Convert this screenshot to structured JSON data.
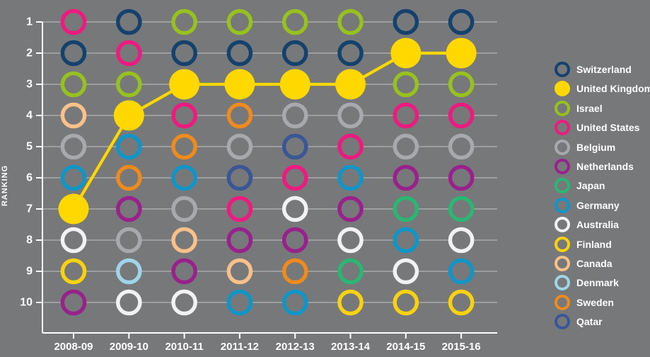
{
  "chart_data": {
    "type": "bump-line",
    "ylabel": "RANKING",
    "x_categories": [
      "2008-09",
      "2009-10",
      "2010-11",
      "2011-12",
      "2012-13",
      "2013-14",
      "2014-15",
      "2015-16"
    ],
    "y_ticks": [
      "1",
      "2",
      "3",
      "4",
      "5",
      "6",
      "7",
      "8",
      "9",
      "10"
    ],
    "ylim": [
      1,
      10
    ],
    "grid": true,
    "legend_position": "right",
    "highlight_series": "United Kingdom",
    "colors": {
      "background": "#77787a",
      "grid": "#a9aaab",
      "axis": "#ffffff",
      "text": "#ffffff",
      "highlight": "#ffd800"
    },
    "series": [
      {
        "name": "Switzerland",
        "color": "#14426d",
        "filled": false,
        "ranks": [
          2,
          1,
          2,
          2,
          2,
          2,
          1,
          1
        ]
      },
      {
        "name": "United Kingdom",
        "color": "#ffd800",
        "filled": true,
        "ranks": [
          7,
          4,
          3,
          3,
          3,
          3,
          2,
          2
        ]
      },
      {
        "name": "Israel",
        "color": "#97c11f",
        "filled": false,
        "ranks": [
          3,
          3,
          1,
          1,
          1,
          1,
          3,
          3
        ]
      },
      {
        "name": "United States",
        "color": "#ed1a7f",
        "filled": false,
        "ranks": [
          1,
          2,
          4,
          7,
          6,
          5,
          4,
          4
        ]
      },
      {
        "name": "Belgium",
        "color": "#a7a9ac",
        "filled": false,
        "ranks": [
          5,
          8,
          7,
          5,
          4,
          4,
          5,
          5
        ]
      },
      {
        "name": "Netherlands",
        "color": "#98218c",
        "filled": false,
        "ranks": [
          10,
          7,
          9,
          8,
          8,
          7,
          6,
          6
        ]
      },
      {
        "name": "Japan",
        "color": "#2bb673",
        "filled": false,
        "ranks": [
          null,
          null,
          null,
          null,
          null,
          9,
          7,
          7
        ]
      },
      {
        "name": "Germany",
        "color": "#1095c9",
        "filled": false,
        "ranks": [
          6,
          5,
          6,
          10,
          10,
          6,
          8,
          9
        ]
      },
      {
        "name": "Australia",
        "color": "#f2f2f2",
        "filled": false,
        "ranks": [
          8,
          10,
          10,
          null,
          7,
          8,
          9,
          8
        ]
      },
      {
        "name": "Finland",
        "color": "#f8d210",
        "filled": false,
        "ranks": [
          9,
          null,
          null,
          null,
          null,
          10,
          10,
          10
        ]
      },
      {
        "name": "Canada",
        "color": "#f9c189",
        "filled": false,
        "ranks": [
          4,
          null,
          8,
          9,
          null,
          null,
          null,
          null
        ]
      },
      {
        "name": "Denmark",
        "color": "#9fd4e9",
        "filled": false,
        "ranks": [
          null,
          9,
          null,
          null,
          null,
          null,
          null,
          null
        ]
      },
      {
        "name": "Sweden",
        "color": "#ef8a1d",
        "filled": false,
        "ranks": [
          null,
          6,
          5,
          4,
          9,
          null,
          null,
          null
        ]
      },
      {
        "name": "Qatar",
        "color": "#3a5795",
        "filled": false,
        "ranks": [
          null,
          null,
          null,
          6,
          5,
          null,
          null,
          null
        ]
      }
    ]
  }
}
